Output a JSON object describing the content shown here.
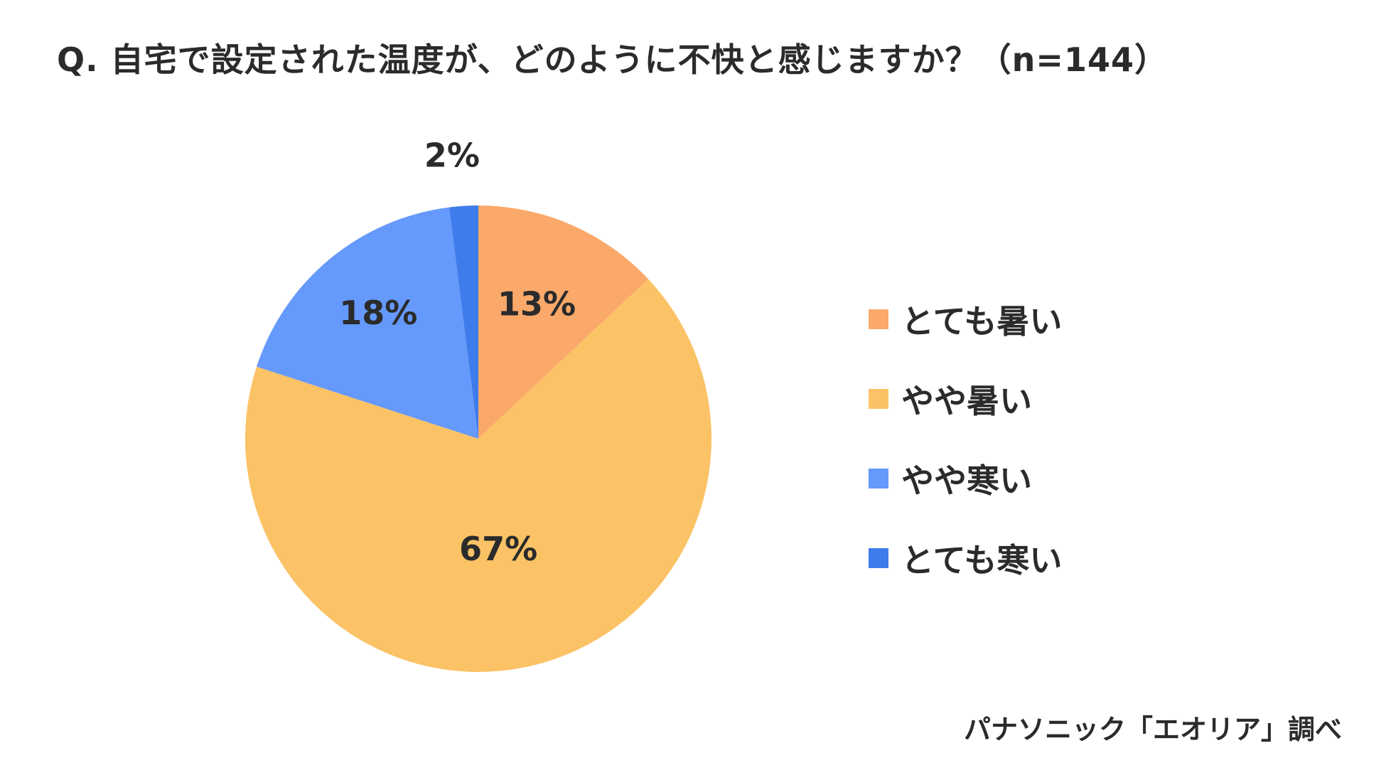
{
  "title": "Q. 自宅で設定された温度が、どのように不快と感じますか？（n=144）",
  "source": "パナソニック「エオリア」調べ",
  "chart_data": {
    "type": "pie",
    "title": "Q. 自宅で設定された温度が、どのように不快と感じますか？（n=144）",
    "start": "12 o'clock, clockwise",
    "legend_position": "right",
    "slices": [
      {
        "label": "とても暑い",
        "value": 13,
        "value_label": "13%",
        "color": "#FBA96A"
      },
      {
        "label": "やや暑い",
        "value": 67,
        "value_label": "67%",
        "color": "#FBC266"
      },
      {
        "label": "やや寒い",
        "value": 18,
        "value_label": "18%",
        "color": "#6599FB"
      },
      {
        "label": "とても寒い",
        "value": 2,
        "value_label": "2%",
        "color": "#3F7CEB"
      }
    ]
  }
}
